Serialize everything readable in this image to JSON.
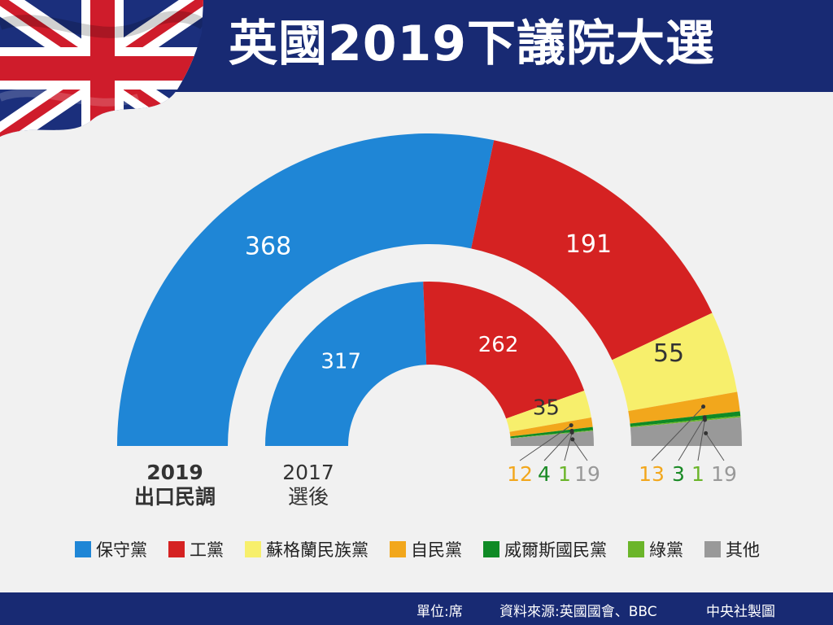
{
  "title": "英國2019下議院大選",
  "colors": {
    "conservative": "#1f86d6",
    "labour": "#d52222",
    "snp": "#f7ef6c",
    "libdem": "#f2a71c",
    "plaid": "#0f8a25",
    "green": "#6bb52a",
    "other": "#999999",
    "header": "#182a73"
  },
  "chart_data": {
    "type": "semi-donut",
    "categories": [
      "保守黨",
      "工黨",
      "蘇格蘭民族黨",
      "自民黨",
      "威爾斯國民黨",
      "綠黨",
      "其他"
    ],
    "series": [
      {
        "name": "2019\n出口民調",
        "values": [
          368,
          191,
          55,
          13,
          3,
          1,
          19
        ],
        "label_lines": [
          "2019",
          "出口民調"
        ]
      },
      {
        "name": "2017\n選後",
        "values": [
          317,
          262,
          35,
          12,
          4,
          1,
          19
        ],
        "label_lines": [
          "2017",
          "選後"
        ]
      }
    ]
  },
  "legend": [
    "保守黨",
    "工黨",
    "蘇格蘭民族黨",
    "自民黨",
    "威爾斯國民黨",
    "綠黨",
    "其他"
  ],
  "footer": {
    "unit": "單位:席",
    "source": "資料來源:英國國會、BBC",
    "credit": "中央社製圖"
  }
}
